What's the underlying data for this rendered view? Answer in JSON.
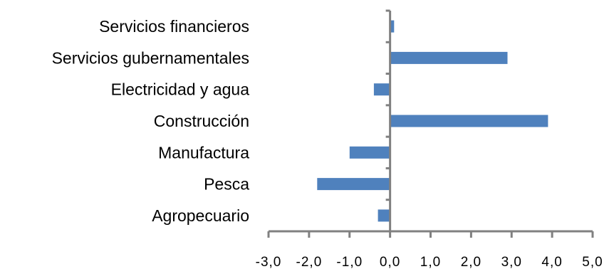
{
  "chart_data": {
    "type": "bar",
    "orientation": "horizontal",
    "title": "",
    "xlabel": "",
    "ylabel": "",
    "categories": [
      "Agropecuario",
      "Pesca",
      "Manufactura",
      "Construcción",
      "Electricidad y agua",
      "Servicios gubernamentales",
      "Servicios financieros"
    ],
    "values": [
      -0.3,
      -1.8,
      -1.0,
      3.9,
      -0.4,
      2.9,
      0.1
    ],
    "xlim": [
      -3.0,
      5.0
    ],
    "xticks": [
      "-3,0",
      "-2,0",
      "-1,0",
      "0,0",
      "1,0",
      "2,0",
      "3,0",
      "4,0",
      "5,0"
    ],
    "bar_color": "#4F81BD",
    "axis_color": "#808080",
    "grid": false,
    "legend": "none"
  }
}
